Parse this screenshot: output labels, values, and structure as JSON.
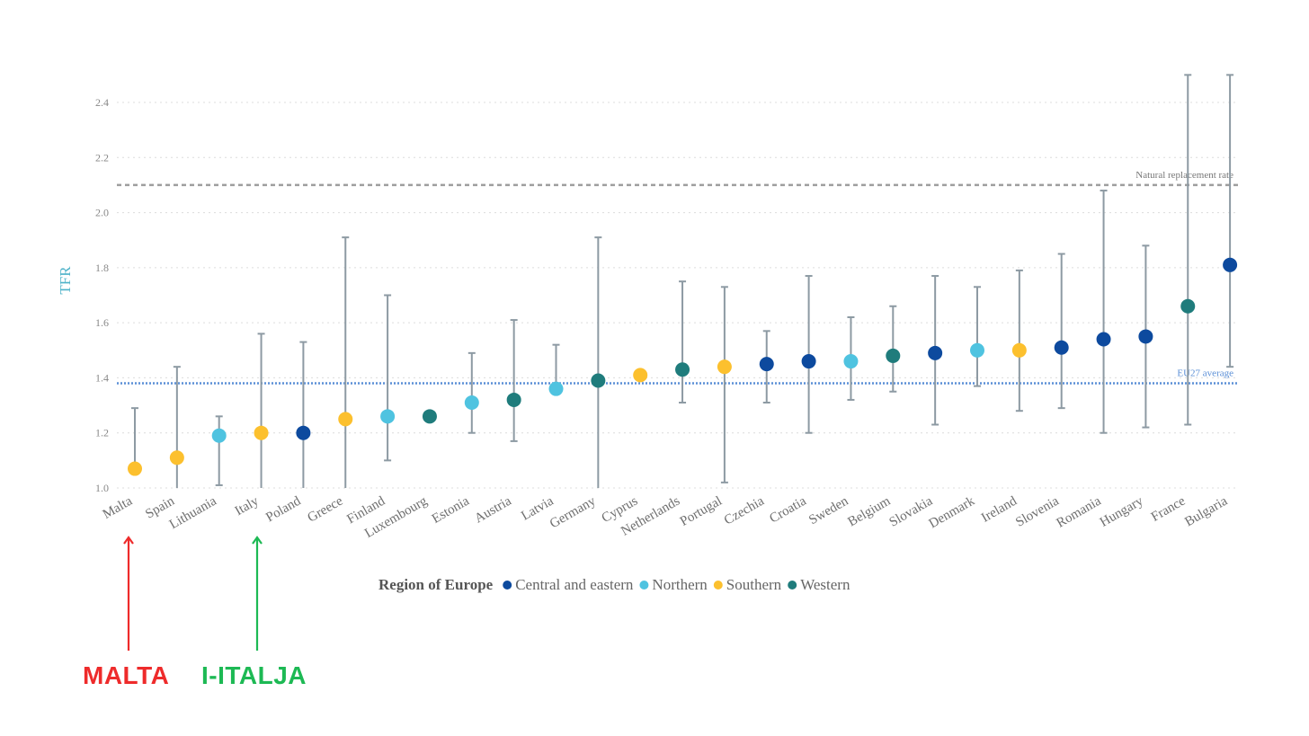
{
  "chart_data": {
    "type": "scatter",
    "ylabel": "TFR",
    "xlabel": "",
    "ylim": [
      1.0,
      2.5
    ],
    "yticks": [
      1.0,
      1.2,
      1.4,
      1.6,
      1.8,
      2.0,
      2.2,
      2.4
    ],
    "grid": true,
    "categories": [
      "Malta",
      "Spain",
      "Lithuania",
      "Italy",
      "Poland",
      "Greece",
      "Finland",
      "Luxembourg",
      "Estonia",
      "Austria",
      "Latvia",
      "Germany",
      "Cyprus",
      "Netherlands",
      "Portugal",
      "Czechia",
      "Croatia",
      "Sweden",
      "Belgium",
      "Slovakia",
      "Denmark",
      "Ireland",
      "Slovenia",
      "Romania",
      "Hungary",
      "France",
      "Bulgaria"
    ],
    "values": [
      1.07,
      1.11,
      1.19,
      1.2,
      1.2,
      1.25,
      1.26,
      1.26,
      1.31,
      1.32,
      1.36,
      1.39,
      1.41,
      1.43,
      1.44,
      1.45,
      1.46,
      1.46,
      1.48,
      1.49,
      1.5,
      1.5,
      1.51,
      1.54,
      1.55,
      1.66,
      1.81
    ],
    "error_low": [
      null,
      1.0,
      1.01,
      1.0,
      1.0,
      1.0,
      1.1,
      null,
      1.2,
      1.17,
      null,
      1.0,
      null,
      1.31,
      1.02,
      1.31,
      1.2,
      1.32,
      1.35,
      1.23,
      1.37,
      1.28,
      1.29,
      1.2,
      1.22,
      1.23,
      1.44
    ],
    "error_high": [
      1.29,
      1.44,
      1.26,
      1.56,
      1.53,
      1.91,
      1.7,
      null,
      1.49,
      1.61,
      1.52,
      1.91,
      null,
      1.75,
      1.73,
      1.57,
      1.77,
      1.62,
      1.66,
      1.77,
      1.73,
      1.79,
      1.85,
      2.08,
      1.88,
      2.5,
      2.5
    ],
    "regions": [
      "Southern",
      "Southern",
      "Northern",
      "Southern",
      "Central and eastern",
      "Southern",
      "Northern",
      "Western",
      "Northern",
      "Western",
      "Northern",
      "Western",
      "Southern",
      "Western",
      "Southern",
      "Central and eastern",
      "Central and eastern",
      "Northern",
      "Western",
      "Central and eastern",
      "Northern",
      "Southern",
      "Central and eastern",
      "Central and eastern",
      "Central and eastern",
      "Western",
      "Central and eastern"
    ],
    "reference_lines": [
      {
        "label": "Natural replacement rate",
        "value": 2.1,
        "color": "#9e9e9e"
      },
      {
        "label": "EU27 average",
        "value": 1.38,
        "color": "#5b8fd6"
      }
    ],
    "legend": {
      "title": "Region of Europe",
      "position": "bottom",
      "entries": [
        {
          "name": "Central and eastern",
          "color": "#0d4a9e"
        },
        {
          "name": "Northern",
          "color": "#4fc3e0"
        },
        {
          "name": "Southern",
          "color": "#fcc02e"
        },
        {
          "name": "Western",
          "color": "#1f7c7c"
        }
      ]
    },
    "error_bar_color": "#8d9aa3",
    "grid_color": "#dcdcdc"
  },
  "annotations": [
    {
      "text": "MALTA",
      "target": "Malta",
      "color": "#ee2b2b"
    },
    {
      "text": "I-ITALJA",
      "target": "Italy",
      "color": "#1db954"
    }
  ]
}
